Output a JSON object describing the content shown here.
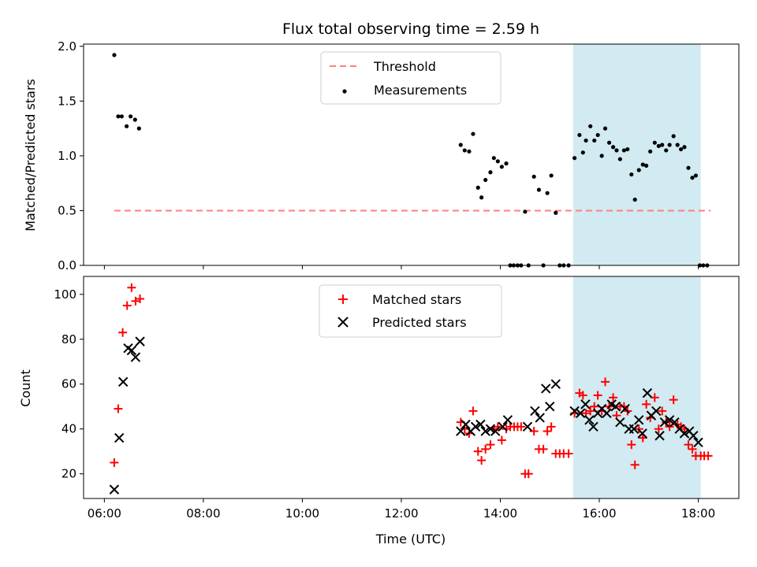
{
  "chart_data": [
    {
      "type": "scatter",
      "title": "Flux total observing time = 2.59 h",
      "xlabel": "",
      "ylabel": "Matched/Predicted stars",
      "ylim": [
        0,
        2.02
      ],
      "yticks": [
        0.0,
        0.5,
        1.0,
        1.5,
        2.0
      ],
      "ytick_labels": [
        "0.0",
        "0.5",
        "1.0",
        "1.5",
        "2.0"
      ],
      "xlim": [
        5.58,
        18.82
      ],
      "xticks": [
        6,
        8,
        10,
        12,
        14,
        16,
        18
      ],
      "shaded_interval": [
        15.47,
        18.05
      ],
      "shade_color": "#add8e6",
      "legend": {
        "placement": "upper-center",
        "entries": [
          "Threshold",
          "Measurements"
        ]
      },
      "threshold": {
        "name": "Threshold",
        "value": 0.5,
        "x_range": [
          6.2,
          18.25
        ],
        "color": "#ff7f7f"
      },
      "series": [
        {
          "name": "Measurements",
          "color": "#000000",
          "points": [
            [
              6.2,
              1.92
            ],
            [
              6.28,
              1.36
            ],
            [
              6.35,
              1.36
            ],
            [
              6.45,
              1.27
            ],
            [
              6.53,
              1.36
            ],
            [
              6.62,
              1.33
            ],
            [
              6.7,
              1.25
            ],
            [
              13.2,
              1.1
            ],
            [
              13.28,
              1.05
            ],
            [
              13.37,
              1.04
            ],
            [
              13.45,
              1.2
            ],
            [
              13.55,
              0.71
            ],
            [
              13.62,
              0.62
            ],
            [
              13.7,
              0.78
            ],
            [
              13.8,
              0.85
            ],
            [
              13.87,
              0.98
            ],
            [
              13.95,
              0.95
            ],
            [
              14.03,
              0.9
            ],
            [
              14.12,
              0.93
            ],
            [
              14.2,
              0.0
            ],
            [
              14.27,
              0.0
            ],
            [
              14.35,
              0.0
            ],
            [
              14.42,
              0.0
            ],
            [
              14.5,
              0.49
            ],
            [
              14.57,
              0.0
            ],
            [
              14.68,
              0.81
            ],
            [
              14.78,
              0.69
            ],
            [
              14.87,
              0.0
            ],
            [
              14.95,
              0.66
            ],
            [
              15.03,
              0.82
            ],
            [
              15.12,
              0.48
            ],
            [
              15.2,
              0.0
            ],
            [
              15.28,
              0.0
            ],
            [
              15.38,
              0.0
            ],
            [
              15.5,
              0.98
            ],
            [
              15.6,
              1.19
            ],
            [
              15.67,
              1.03
            ],
            [
              15.73,
              1.14
            ],
            [
              15.82,
              1.27
            ],
            [
              15.9,
              1.14
            ],
            [
              15.97,
              1.19
            ],
            [
              16.05,
              1.0
            ],
            [
              16.12,
              1.25
            ],
            [
              16.2,
              1.12
            ],
            [
              16.28,
              1.08
            ],
            [
              16.35,
              1.05
            ],
            [
              16.42,
              0.97
            ],
            [
              16.5,
              1.05
            ],
            [
              16.57,
              1.06
            ],
            [
              16.65,
              0.83
            ],
            [
              16.72,
              0.6
            ],
            [
              16.8,
              0.87
            ],
            [
              16.88,
              0.92
            ],
            [
              16.95,
              0.91
            ],
            [
              17.03,
              1.04
            ],
            [
              17.12,
              1.12
            ],
            [
              17.2,
              1.09
            ],
            [
              17.27,
              1.1
            ],
            [
              17.35,
              1.05
            ],
            [
              17.42,
              1.1
            ],
            [
              17.5,
              1.18
            ],
            [
              17.58,
              1.1
            ],
            [
              17.65,
              1.06
            ],
            [
              17.72,
              1.08
            ],
            [
              17.8,
              0.89
            ],
            [
              17.88,
              0.8
            ],
            [
              17.95,
              0.82
            ],
            [
              18.03,
              0.0
            ],
            [
              18.1,
              0.0
            ],
            [
              18.18,
              0.0
            ]
          ]
        }
      ]
    },
    {
      "type": "scatter",
      "xlabel": "Time (UTC)",
      "ylabel": "Count",
      "ylim": [
        9,
        108
      ],
      "yticks": [
        20,
        40,
        60,
        80,
        100
      ],
      "ytick_labels": [
        "20",
        "40",
        "60",
        "80",
        "100"
      ],
      "xlim": [
        5.58,
        18.82
      ],
      "xticks": [
        6,
        8,
        10,
        12,
        14,
        16,
        18
      ],
      "xtick_labels": [
        "06:00",
        "08:00",
        "10:00",
        "12:00",
        "14:00",
        "16:00",
        "18:00"
      ],
      "shaded_interval": [
        15.47,
        18.05
      ],
      "shade_color": "#add8e6",
      "legend": {
        "placement": "upper-center",
        "entries": [
          "Matched stars",
          "Predicted stars"
        ]
      },
      "series": [
        {
          "name": "Matched stars",
          "marker": "plus",
          "color": "#ff0000",
          "points": [
            [
              6.2,
              25
            ],
            [
              6.28,
              49
            ],
            [
              6.37,
              83
            ],
            [
              6.46,
              95
            ],
            [
              6.55,
              103
            ],
            [
              6.63,
              97
            ],
            [
              6.72,
              98
            ],
            [
              13.2,
              43
            ],
            [
              13.28,
              40
            ],
            [
              13.37,
              38
            ],
            [
              13.45,
              48
            ],
            [
              13.55,
              30
            ],
            [
              13.62,
              26
            ],
            [
              13.7,
              31
            ],
            [
              13.8,
              33
            ],
            [
              13.87,
              40
            ],
            [
              13.95,
              41
            ],
            [
              14.03,
              35
            ],
            [
              14.12,
              40
            ],
            [
              14.2,
              41
            ],
            [
              14.28,
              41
            ],
            [
              14.35,
              41
            ],
            [
              14.42,
              41
            ],
            [
              14.5,
              20
            ],
            [
              14.57,
              20
            ],
            [
              14.68,
              39
            ],
            [
              14.78,
              31
            ],
            [
              14.87,
              31
            ],
            [
              14.95,
              39
            ],
            [
              15.03,
              41
            ],
            [
              15.12,
              29
            ],
            [
              15.2,
              29
            ],
            [
              15.28,
              29
            ],
            [
              15.38,
              29
            ],
            [
              15.5,
              47
            ],
            [
              15.6,
              56
            ],
            [
              15.67,
              55
            ],
            [
              15.73,
              47
            ],
            [
              15.82,
              48
            ],
            [
              15.9,
              50
            ],
            [
              15.97,
              55
            ],
            [
              16.05,
              48
            ],
            [
              16.12,
              61
            ],
            [
              16.2,
              50
            ],
            [
              16.28,
              54
            ],
            [
              16.35,
              46
            ],
            [
              16.42,
              50
            ],
            [
              16.5,
              50
            ],
            [
              16.57,
              48
            ],
            [
              16.65,
              33
            ],
            [
              16.72,
              24
            ],
            [
              16.8,
              40
            ],
            [
              16.88,
              36
            ],
            [
              16.95,
              51
            ],
            [
              17.03,
              45
            ],
            [
              17.12,
              54
            ],
            [
              17.2,
              40
            ],
            [
              17.27,
              48
            ],
            [
              17.35,
              43
            ],
            [
              17.42,
              41
            ],
            [
              17.5,
              53
            ],
            [
              17.58,
              42
            ],
            [
              17.65,
              41
            ],
            [
              17.72,
              40
            ],
            [
              17.8,
              33
            ],
            [
              17.88,
              31
            ],
            [
              17.95,
              28
            ],
            [
              18.05,
              28
            ],
            [
              18.12,
              28
            ],
            [
              18.2,
              28
            ]
          ]
        },
        {
          "name": "Predicted stars",
          "marker": "x",
          "color": "#000000",
          "points": [
            [
              6.2,
              13
            ],
            [
              6.3,
              36
            ],
            [
              6.38,
              61
            ],
            [
              6.48,
              76
            ],
            [
              6.55,
              75
            ],
            [
              6.63,
              72
            ],
            [
              6.72,
              79
            ],
            [
              13.2,
              39
            ],
            [
              13.3,
              42
            ],
            [
              13.4,
              39
            ],
            [
              13.5,
              41
            ],
            [
              13.6,
              42
            ],
            [
              13.7,
              39
            ],
            [
              13.8,
              40
            ],
            [
              13.9,
              39
            ],
            [
              14.05,
              41
            ],
            [
              14.15,
              44
            ],
            [
              14.55,
              41
            ],
            [
              14.7,
              48
            ],
            [
              14.8,
              45
            ],
            [
              14.92,
              58
            ],
            [
              15.0,
              50
            ],
            [
              15.12,
              60
            ],
            [
              15.5,
              48
            ],
            [
              15.62,
              47
            ],
            [
              15.72,
              51
            ],
            [
              15.8,
              44
            ],
            [
              15.88,
              41
            ],
            [
              15.97,
              47
            ],
            [
              16.05,
              49
            ],
            [
              16.15,
              47
            ],
            [
              16.25,
              51
            ],
            [
              16.33,
              50
            ],
            [
              16.42,
              43
            ],
            [
              16.52,
              49
            ],
            [
              16.6,
              40
            ],
            [
              16.7,
              40
            ],
            [
              16.8,
              44
            ],
            [
              16.87,
              38
            ],
            [
              16.97,
              56
            ],
            [
              17.05,
              46
            ],
            [
              17.15,
              48
            ],
            [
              17.22,
              37
            ],
            [
              17.32,
              43
            ],
            [
              17.42,
              44
            ],
            [
              17.52,
              43
            ],
            [
              17.62,
              40
            ],
            [
              17.72,
              38
            ],
            [
              17.82,
              39
            ],
            [
              17.9,
              37
            ],
            [
              18.0,
              34
            ]
          ]
        }
      ]
    }
  ]
}
